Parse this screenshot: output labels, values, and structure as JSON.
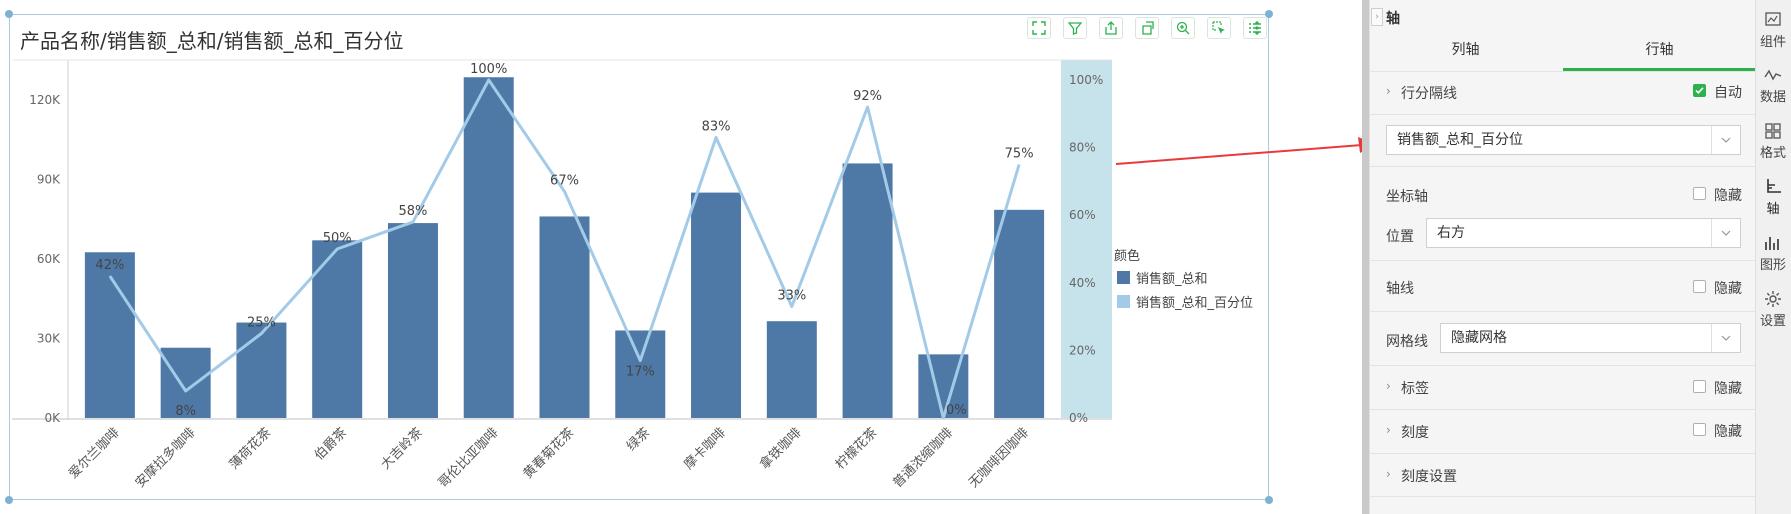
{
  "chart_widget": {
    "title": "产品名称/销售额_总和/销售额_总和_百分位",
    "toolbar": [
      "fullscreen-icon",
      "filter-icon",
      "export-icon",
      "refresh-icon",
      "zoom-icon",
      "select-icon",
      "list-icon",
      "more-icon"
    ]
  },
  "chart_data": {
    "type": "bar",
    "title": "产品名称/销售额_总和/销售额_总和_百分位",
    "categories": [
      "爱尔兰咖啡",
      "安摩拉多咖啡",
      "薄荷花茶",
      "伯爵茶",
      "大吉岭茶",
      "哥伦比亚咖啡",
      "黄春菊花茶",
      "绿茶",
      "摩卡咖啡",
      "拿铁咖啡",
      "柠檬花茶",
      "普通浓缩咖啡",
      "无咖啡因咖啡"
    ],
    "series": [
      {
        "name": "销售额_总和",
        "type": "bar",
        "axis": "left",
        "color": "#4e79a7",
        "values": [
          62500,
          26500,
          36000,
          67000,
          73500,
          128500,
          76000,
          33000,
          85000,
          36500,
          96000,
          24000,
          78500
        ]
      },
      {
        "name": "销售额_总和_百分位",
        "type": "line",
        "axis": "right",
        "color": "#a3cbe8",
        "values": [
          42,
          8,
          25,
          50,
          58,
          100,
          67,
          17,
          83,
          33,
          92,
          0,
          75
        ]
      }
    ],
    "point_labels": [
      "42%",
      "8%",
      "25%",
      "50%",
      "58%",
      "100%",
      "67%",
      "17%",
      "83%",
      "33%",
      "92%",
      "0%",
      "75%"
    ],
    "left_axis": {
      "min": 0,
      "max": 135000,
      "ticks": [
        0,
        30000,
        60000,
        90000,
        120000
      ],
      "tick_labels": [
        "0K",
        "30K",
        "60K",
        "90K",
        "120K"
      ]
    },
    "right_axis": {
      "min": 0,
      "max": 100,
      "ticks": [
        0,
        20,
        40,
        60,
        80,
        100
      ],
      "tick_labels": [
        "0%",
        "20%",
        "40%",
        "60%",
        "80%",
        "100%"
      ],
      "band_color": "#c6e3ec"
    },
    "legend": {
      "title": "颜色",
      "position": "right",
      "items": [
        "销售额_总和",
        "销售额_总和_百分位"
      ]
    },
    "grid": false
  },
  "panel": {
    "header": "轴",
    "tabs": [
      "列轴",
      "行轴"
    ],
    "active_tab": "行轴",
    "row_divider": {
      "label": "行分隔线",
      "checkbox_label": "自动",
      "checked": true
    },
    "axis_select": "销售额_总和_百分位",
    "coord_axis": {
      "label": "坐标轴",
      "checkbox_label": "隐藏"
    },
    "position": {
      "label": "位置",
      "value": "右方"
    },
    "axis_line": {
      "label": "轴线",
      "checkbox_label": "隐藏"
    },
    "grid_line": {
      "label": "网格线",
      "value": "隐藏网格"
    },
    "tag": {
      "label": "标签",
      "checkbox_label": "隐藏"
    },
    "scale": {
      "label": "刻度",
      "checkbox_label": "隐藏"
    },
    "scale_settings": {
      "label": "刻度设置"
    }
  },
  "side_toolbar": [
    {
      "label": "组件",
      "icon": "component-icon"
    },
    {
      "label": "数据",
      "icon": "data-icon"
    },
    {
      "label": "格式",
      "icon": "format-icon"
    },
    {
      "label": "轴",
      "icon": "axis-icon"
    },
    {
      "label": "图形",
      "icon": "graph-icon"
    },
    {
      "label": "设置",
      "icon": "settings-icon"
    }
  ],
  "colors": {
    "accent": "#2bb24c",
    "arrow": "#e83a3a",
    "bar": "#4e79a7",
    "line": "#a3cbe8"
  }
}
